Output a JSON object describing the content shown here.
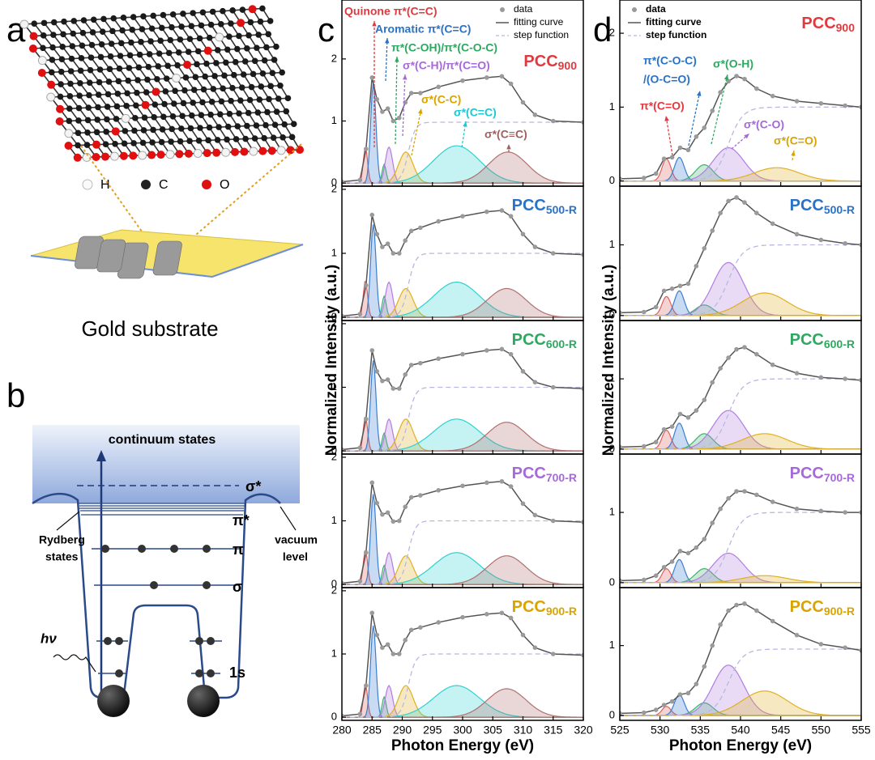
{
  "panel_a": {
    "label": "a",
    "atoms": [
      "H",
      "C",
      "O"
    ],
    "caption": "Gold substrate"
  },
  "panel_b": {
    "label": "b",
    "continuum": "continuum states",
    "levels": [
      "σ*",
      "π*",
      "π",
      "σ",
      "1s"
    ],
    "rydberg": [
      "Rydberg",
      "states"
    ],
    "vacuum": [
      "vacuum",
      "level"
    ],
    "photon": "hν"
  },
  "chart_data": [
    {
      "type": "line",
      "panel_label": "c",
      "xlabel": "Photon Energy (eV)",
      "ylabel": "Normalized Intensity (a.u.)",
      "xlim": [
        280,
        320
      ],
      "xticks": [
        280,
        285,
        290,
        295,
        300,
        305,
        310,
        315,
        320
      ],
      "legend": [
        "data",
        "fitting curve",
        "step function"
      ],
      "peak_colors": [
        "#e06060",
        "#3a7fd0",
        "#3cb371",
        "#b07ee0",
        "#e0b020",
        "#30d0d0",
        "#b07070"
      ],
      "annotations": [
        {
          "text": "Quinone π*(C=C)",
          "color": "#e0393e"
        },
        {
          "text": "Aromatic π*(C=C)",
          "color": "#2a72c8"
        },
        {
          "text": "π*(C-OH)/π*(C-O-C)",
          "color": "#2ea860"
        },
        {
          "text": "σ*(C-H)/π*(C=O)",
          "color": "#a66ad8"
        },
        {
          "text": "σ*(C-C)",
          "color": "#d9a400"
        },
        {
          "text": "σ*(C=C)",
          "color": "#1ec8d0"
        },
        {
          "text": "σ*(C≡C)",
          "color": "#a06060"
        }
      ],
      "x": [
        280,
        283,
        284,
        285,
        285.8,
        286.7,
        287.6,
        288.5,
        289.5,
        290.5,
        291.5,
        293,
        296,
        300,
        304,
        306.5,
        308,
        310,
        312,
        315,
        320
      ],
      "subplots": [
        {
          "sample": {
            "base": "PCC",
            "sub": "900",
            "color": "#e0393e"
          },
          "ylim": [
            -0.05,
            2.95
          ],
          "yticks": [
            0,
            1,
            2
          ],
          "values": [
            0.02,
            0.05,
            0.55,
            1.7,
            1.35,
            1.15,
            1.2,
            1.0,
            1.05,
            1.3,
            1.45,
            1.45,
            1.55,
            1.65,
            1.7,
            1.72,
            1.6,
            1.3,
            1.1,
            1.0,
            0.98
          ],
          "peaks": [
            {
              "center": 283.9,
              "height": 0.58,
              "width": 0.35
            },
            {
              "center": 285.2,
              "height": 1.6,
              "width": 0.45
            },
            {
              "center": 287,
              "height": 0.3,
              "width": 0.35
            },
            {
              "center": 287.8,
              "height": 0.58,
              "width": 0.6
            },
            {
              "center": 290.6,
              "height": 0.5,
              "width": 1.2
            },
            {
              "center": 299,
              "height": 0.6,
              "width": 3.8
            },
            {
              "center": 307.5,
              "height": 0.5,
              "width": 3.2
            }
          ],
          "step": {
            "center": 291,
            "height": 0.98,
            "width": 1.2
          }
        },
        {
          "sample": {
            "base": "PCC",
            "sub": "500-R",
            "color": "#2a72c8"
          },
          "ylim": [
            -0.05,
            2.05
          ],
          "yticks": [
            0,
            1,
            2
          ],
          "values": [
            0.02,
            0.05,
            0.5,
            1.6,
            1.3,
            1.1,
            1.15,
            1.0,
            1.0,
            1.2,
            1.35,
            1.4,
            1.5,
            1.58,
            1.65,
            1.67,
            1.58,
            1.3,
            1.1,
            1.0,
            0.98
          ],
          "peaks": [
            {
              "center": 283.9,
              "height": 0.58,
              "width": 0.35
            },
            {
              "center": 285.2,
              "height": 1.45,
              "width": 0.45
            },
            {
              "center": 287,
              "height": 0.33,
              "width": 0.35
            },
            {
              "center": 287.8,
              "height": 0.55,
              "width": 0.6
            },
            {
              "center": 290.6,
              "height": 0.45,
              "width": 1.2
            },
            {
              "center": 299,
              "height": 0.55,
              "width": 3.8
            },
            {
              "center": 307.3,
              "height": 0.45,
              "width": 3.2
            }
          ],
          "step": {
            "center": 291,
            "height": 1.0,
            "width": 1.2
          }
        },
        {
          "sample": {
            "base": "PCC",
            "sub": "600-R",
            "color": "#2ea860"
          },
          "ylim": [
            -0.05,
            2.05
          ],
          "yticks": [
            0,
            1,
            2
          ],
          "values": [
            0.02,
            0.05,
            0.5,
            1.58,
            1.25,
            1.1,
            1.12,
            0.98,
            0.98,
            1.2,
            1.35,
            1.38,
            1.45,
            1.52,
            1.58,
            1.6,
            1.52,
            1.25,
            1.08,
            1.0,
            0.98
          ],
          "peaks": [
            {
              "center": 283.9,
              "height": 0.55,
              "width": 0.35
            },
            {
              "center": 285.2,
              "height": 1.42,
              "width": 0.45
            },
            {
              "center": 287,
              "height": 0.28,
              "width": 0.35
            },
            {
              "center": 287.8,
              "height": 0.5,
              "width": 0.6
            },
            {
              "center": 290.6,
              "height": 0.5,
              "width": 1.2
            },
            {
              "center": 299,
              "height": 0.5,
              "width": 3.8
            },
            {
              "center": 307.3,
              "height": 0.45,
              "width": 3.2
            }
          ],
          "step": {
            "center": 291,
            "height": 1.0,
            "width": 1.2
          }
        },
        {
          "sample": {
            "base": "PCC",
            "sub": "700-R",
            "color": "#a66ad8"
          },
          "ylim": [
            -0.05,
            2.05
          ],
          "yticks": [
            0,
            1,
            2
          ],
          "values": [
            0.02,
            0.05,
            0.5,
            1.6,
            1.28,
            1.1,
            1.13,
            0.99,
            1.0,
            1.22,
            1.37,
            1.4,
            1.48,
            1.55,
            1.6,
            1.62,
            1.54,
            1.27,
            1.09,
            1.0,
            0.98
          ],
          "peaks": [
            {
              "center": 283.9,
              "height": 0.55,
              "width": 0.35
            },
            {
              "center": 285.2,
              "height": 1.42,
              "width": 0.45
            },
            {
              "center": 287,
              "height": 0.3,
              "width": 0.35
            },
            {
              "center": 287.8,
              "height": 0.5,
              "width": 0.6
            },
            {
              "center": 290.6,
              "height": 0.45,
              "width": 1.2
            },
            {
              "center": 299,
              "height": 0.5,
              "width": 3.8
            },
            {
              "center": 307.3,
              "height": 0.45,
              "width": 3.2
            }
          ],
          "step": {
            "center": 291,
            "height": 1.0,
            "width": 1.2
          }
        },
        {
          "sample": {
            "base": "PCC",
            "sub": "900-R",
            "color": "#d9a400"
          },
          "ylim": [
            -0.05,
            2.05
          ],
          "yticks": [
            0,
            1,
            2
          ],
          "values": [
            0.02,
            0.05,
            0.5,
            1.65,
            1.3,
            1.1,
            1.15,
            1.0,
            1.0,
            1.22,
            1.38,
            1.42,
            1.5,
            1.58,
            1.63,
            1.65,
            1.57,
            1.3,
            1.1,
            1.0,
            0.98
          ],
          "peaks": [
            {
              "center": 283.9,
              "height": 0.52,
              "width": 0.35
            },
            {
              "center": 285.2,
              "height": 1.45,
              "width": 0.45
            },
            {
              "center": 287,
              "height": 0.32,
              "width": 0.35
            },
            {
              "center": 287.8,
              "height": 0.5,
              "width": 0.6
            },
            {
              "center": 290.6,
              "height": 0.5,
              "width": 1.2
            },
            {
              "center": 299,
              "height": 0.5,
              "width": 3.8
            },
            {
              "center": 307.3,
              "height": 0.45,
              "width": 3.2
            }
          ],
          "step": {
            "center": 291,
            "height": 1.0,
            "width": 1.2
          }
        }
      ]
    },
    {
      "type": "line",
      "panel_label": "d",
      "xlabel": "Photon Energy (eV)",
      "ylabel": "Normalized Intensity (a.u.)",
      "xlim": [
        525,
        555
      ],
      "xticks": [
        525,
        530,
        535,
        540,
        545,
        550,
        555
      ],
      "legend": [
        "data",
        "fitting curve",
        "step function"
      ],
      "peak_colors": [
        "#e06060",
        "#3a7fd0",
        "#3cb371",
        "#b07ee0",
        "#e0b020"
      ],
      "annotations": [
        {
          "text": "π*(C=O)",
          "color": "#e0393e"
        },
        {
          "text": "π*(C-O-C)",
          "color": "#2a72c8"
        },
        {
          "text": "/(O-C=O)",
          "color": "#2a72c8"
        },
        {
          "text": "σ*(O-H)",
          "color": "#2ea860"
        },
        {
          "text": "σ*(C-O)",
          "color": "#a66ad8"
        },
        {
          "text": "σ*(C=O)",
          "color": "#d9a400"
        }
      ],
      "x": [
        525,
        528,
        529.5,
        530.5,
        531.5,
        532.5,
        533.5,
        534.5,
        535.5,
        536.5,
        537.5,
        538.5,
        539.5,
        540.5,
        542,
        544,
        547,
        550,
        553,
        555
      ],
      "subplots": [
        {
          "sample": {
            "base": "PCC",
            "sub": "900",
            "color": "#e0393e"
          },
          "ylim": [
            -0.07,
            2.45
          ],
          "yticks": [
            0,
            1,
            2
          ],
          "values": [
            0.03,
            0.04,
            0.1,
            0.3,
            0.32,
            0.45,
            0.42,
            0.6,
            0.72,
            0.95,
            1.2,
            1.35,
            1.42,
            1.38,
            1.25,
            1.15,
            1.08,
            1.05,
            1.02,
            1.0
          ],
          "peaks": [
            {
              "center": 530.8,
              "height": 0.3,
              "width": 0.55
            },
            {
              "center": 532.4,
              "height": 0.32,
              "width": 0.6
            },
            {
              "center": 535.5,
              "height": 0.22,
              "width": 1.1
            },
            {
              "center": 538.5,
              "height": 0.45,
              "width": 1.9
            },
            {
              "center": 544.5,
              "height": 0.18,
              "width": 2.8
            }
          ],
          "step": {
            "center": 538.5,
            "height": 1.0,
            "width": 1.8
          }
        },
        {
          "sample": {
            "base": "PCC",
            "sub": "500-R",
            "color": "#2a72c8"
          },
          "ylim": [
            -0.07,
            1.83
          ],
          "yticks": [
            0,
            1
          ],
          "values": [
            0.04,
            0.05,
            0.12,
            0.35,
            0.38,
            0.42,
            0.45,
            0.7,
            0.95,
            1.2,
            1.45,
            1.62,
            1.67,
            1.6,
            1.45,
            1.3,
            1.15,
            1.07,
            1.02,
            1.0
          ],
          "peaks": [
            {
              "center": 530.8,
              "height": 0.27,
              "width": 0.55
            },
            {
              "center": 532.4,
              "height": 0.35,
              "width": 0.6
            },
            {
              "center": 535.5,
              "height": 0.15,
              "width": 1.1
            },
            {
              "center": 538.5,
              "height": 0.75,
              "width": 1.9
            },
            {
              "center": 543,
              "height": 0.32,
              "width": 2.8
            }
          ],
          "step": {
            "center": 538.5,
            "height": 1.0,
            "width": 1.8
          }
        },
        {
          "sample": {
            "base": "PCC",
            "sub": "600-R",
            "color": "#2ea860"
          },
          "ylim": [
            -0.07,
            1.83
          ],
          "yticks": [
            0,
            1
          ],
          "values": [
            0.03,
            0.04,
            0.1,
            0.28,
            0.32,
            0.5,
            0.45,
            0.55,
            0.7,
            0.95,
            1.15,
            1.3,
            1.42,
            1.45,
            1.35,
            1.2,
            1.08,
            1.02,
            1.0,
            0.98
          ],
          "peaks": [
            {
              "center": 530.8,
              "height": 0.27,
              "width": 0.55
            },
            {
              "center": 532.4,
              "height": 0.37,
              "width": 0.6
            },
            {
              "center": 535.5,
              "height": 0.22,
              "width": 1.1
            },
            {
              "center": 538.5,
              "height": 0.55,
              "width": 1.9
            },
            {
              "center": 543,
              "height": 0.22,
              "width": 2.8
            }
          ],
          "step": {
            "center": 538.5,
            "height": 1.0,
            "width": 1.8
          }
        },
        {
          "sample": {
            "base": "PCC",
            "sub": "700-R",
            "color": "#a66ad8"
          },
          "ylim": [
            -0.07,
            1.83
          ],
          "yticks": [
            0,
            1
          ],
          "values": [
            0.03,
            0.04,
            0.1,
            0.22,
            0.3,
            0.45,
            0.42,
            0.5,
            0.62,
            0.85,
            1.05,
            1.2,
            1.3,
            1.3,
            1.25,
            1.15,
            1.05,
            1.02,
            1.0,
            1.0
          ],
          "peaks": [
            {
              "center": 530.8,
              "height": 0.2,
              "width": 0.55
            },
            {
              "center": 532.4,
              "height": 0.33,
              "width": 0.6
            },
            {
              "center": 535.5,
              "height": 0.2,
              "width": 1.1
            },
            {
              "center": 538.5,
              "height": 0.42,
              "width": 1.9
            },
            {
              "center": 543,
              "height": 0.1,
              "width": 2.8
            }
          ],
          "step": {
            "center": 538.5,
            "height": 1.0,
            "width": 1.8
          }
        },
        {
          "sample": {
            "base": "PCC",
            "sub": "900-R",
            "color": "#d9a400"
          },
          "ylim": [
            -0.07,
            1.83
          ],
          "yticks": [
            0,
            1
          ],
          "values": [
            0.03,
            0.04,
            0.08,
            0.15,
            0.2,
            0.3,
            0.32,
            0.45,
            0.7,
            1.0,
            1.3,
            1.5,
            1.58,
            1.6,
            1.5,
            1.35,
            1.15,
            1.02,
            0.97,
            0.93
          ],
          "peaks": [
            {
              "center": 530.8,
              "height": 0.13,
              "width": 0.55
            },
            {
              "center": 532.4,
              "height": 0.3,
              "width": 0.6
            },
            {
              "center": 535.5,
              "height": 0.18,
              "width": 1.1
            },
            {
              "center": 538.5,
              "height": 0.72,
              "width": 1.9
            },
            {
              "center": 543,
              "height": 0.35,
              "width": 2.8
            }
          ],
          "step": {
            "center": 538.5,
            "height": 0.95,
            "width": 1.8
          }
        }
      ]
    }
  ]
}
